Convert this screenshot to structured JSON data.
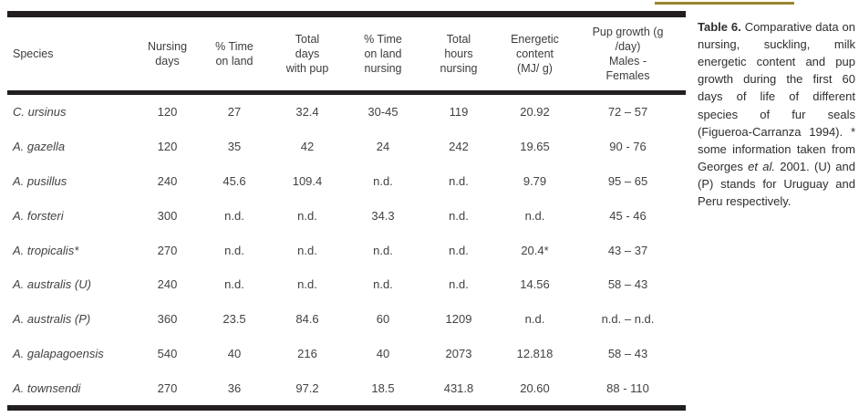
{
  "decor": {
    "gold_line_color": "#9c8632",
    "table_border_color": "#231f20"
  },
  "caption": {
    "label": "Table 6.",
    "text_before_italic": " Comparative data on nursing, suckling, milk energetic content and pup growth during the first 60 days of life of different species of fur seals (Figueroa-Carranza 1994). * some information taken from Georges ",
    "italic": "et al.",
    "text_after_italic": " 2001. (U) and (P) stands for Uruguay and Peru respectively."
  },
  "table": {
    "headers": [
      "Species",
      "Nursing\ndays",
      "% Time\non land",
      "Total\ndays\nwith pup",
      "% Time\non land\nnursing",
      "Total\nhours\nnursing",
      "Energetic\ncontent\n(MJ/ g)",
      "Pup growth (g\n/day)\nMales -\nFemales"
    ],
    "rows": [
      {
        "species": "C. ursinus",
        "values": [
          "120",
          "27",
          "32.4",
          "30-45",
          "119",
          "20.92",
          "72 – 57"
        ]
      },
      {
        "species": "A. gazella",
        "values": [
          "120",
          "35",
          "42",
          "24",
          "242",
          "19.65",
          "90 - 76"
        ]
      },
      {
        "species": "A. pusillus",
        "values": [
          "240",
          "45.6",
          "109.4",
          "n.d.",
          "n.d.",
          "9.79",
          "95 – 65"
        ]
      },
      {
        "species": "A. forsteri",
        "values": [
          "300",
          "n.d.",
          "n.d.",
          "34.3",
          "n.d.",
          "n.d.",
          "45 - 46"
        ]
      },
      {
        "species": "A. tropicalis*",
        "values": [
          "270",
          "n.d.",
          "n.d.",
          "n.d.",
          "n.d.",
          "20.4*",
          "43 – 37"
        ]
      },
      {
        "species": "A. australis (U)",
        "values": [
          "240",
          "n.d.",
          "n.d.",
          "n.d.",
          "n.d.",
          "14.56",
          "58 – 43"
        ]
      },
      {
        "species": "A. australis (P)",
        "values": [
          "360",
          "23.5",
          "84.6",
          "60",
          "1209",
          "n.d.",
          "n.d. – n.d."
        ]
      },
      {
        "species": "A. galapagoensis",
        "values": [
          "540",
          "40",
          "216",
          "40",
          "2073",
          "12.818",
          "58 – 43"
        ]
      },
      {
        "species": "A. townsendi",
        "values": [
          "270",
          "36",
          "97.2",
          "18.5",
          "431.8",
          "20.60",
          "88 - 110"
        ]
      }
    ]
  }
}
